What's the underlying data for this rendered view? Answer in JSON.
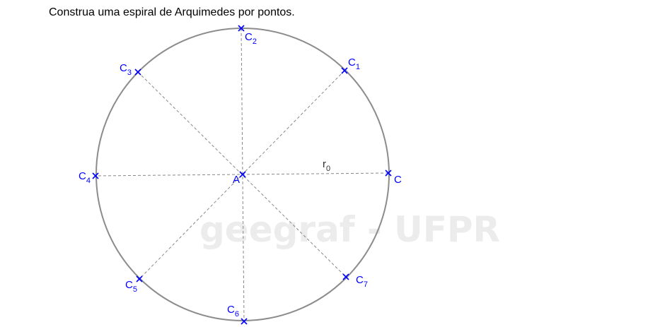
{
  "instruction": "Construa uma espiral de Arquimedes por pontos.",
  "watermark": "geegraf - UFPR",
  "colors": {
    "circle": "#8c8c8c",
    "dashed": "#888888",
    "points": "#0000ff"
  },
  "center_label": "A",
  "radius_label": {
    "base": "r",
    "sub": "0"
  },
  "points": [
    {
      "base": "C",
      "sub": ""
    },
    {
      "base": "C",
      "sub": "1"
    },
    {
      "base": "C",
      "sub": "2"
    },
    {
      "base": "C",
      "sub": "3"
    },
    {
      "base": "C",
      "sub": "4"
    },
    {
      "base": "C",
      "sub": "5"
    },
    {
      "base": "C",
      "sub": "6"
    },
    {
      "base": "C",
      "sub": "7"
    }
  ]
}
